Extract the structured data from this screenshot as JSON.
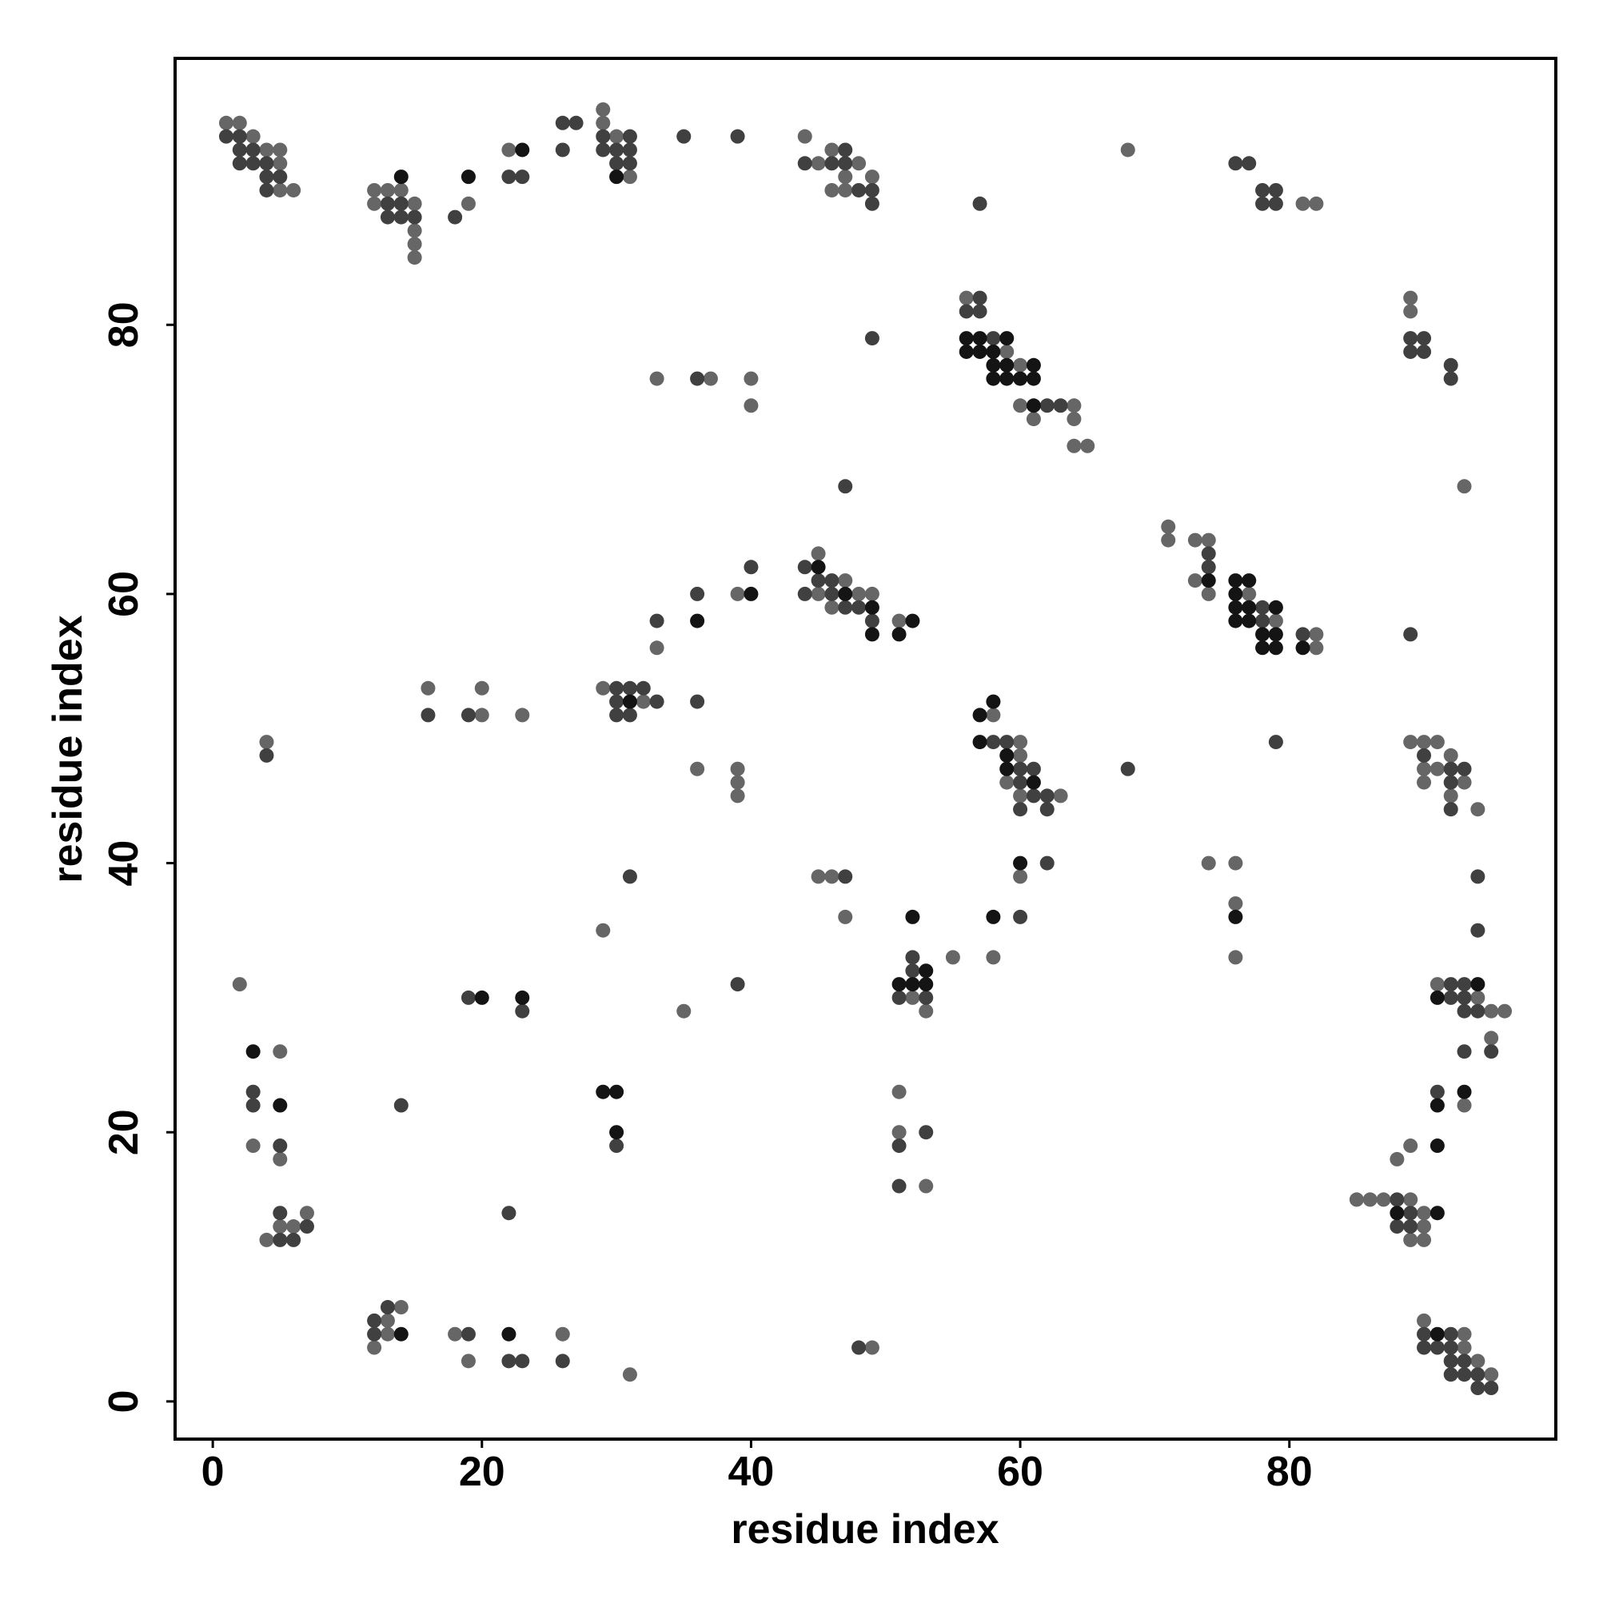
{
  "chart_data": {
    "type": "scatter",
    "xlabel": "residue index",
    "ylabel": "residue index",
    "xlim": [
      -2.8,
      99.8
    ],
    "ylim": [
      -2.8,
      99.8
    ],
    "xticks": [
      0,
      20,
      40,
      60,
      80
    ],
    "yticks": [
      0,
      20,
      40,
      60,
      80
    ],
    "series": [
      {
        "color": "#666666",
        "x": [
          1,
          2,
          3,
          4,
          5,
          5,
          5,
          6,
          12,
          13,
          14,
          12,
          15,
          15,
          15,
          15,
          19,
          22,
          29,
          29,
          30,
          31,
          44,
          45,
          46,
          48,
          47,
          49,
          46,
          47,
          68,
          81,
          82,
          56,
          59,
          60,
          60,
          64,
          61,
          64,
          64,
          65,
          33,
          37,
          40,
          40,
          89,
          89,
          93,
          71,
          71,
          73,
          74,
          73,
          74,
          77,
          79,
          82,
          82,
          45,
          45,
          47,
          48,
          49,
          46,
          51,
          39,
          33,
          16,
          20,
          20,
          23,
          29,
          32,
          4,
          36,
          39,
          39,
          39,
          58,
          60,
          60,
          59,
          60,
          63,
          89,
          90,
          91,
          92,
          90,
          91,
          90,
          93,
          92,
          94,
          60,
          45,
          46,
          47,
          74,
          76,
          76,
          29,
          55,
          58,
          76,
          52,
          53,
          2,
          35,
          91,
          94,
          95,
          96,
          95,
          5,
          3,
          5,
          51,
          51,
          53,
          93,
          89,
          88,
          7,
          5,
          6,
          4,
          85,
          86,
          87,
          89,
          90,
          90,
          89,
          90,
          14,
          13,
          13,
          12,
          18,
          19,
          26,
          31,
          49,
          90,
          93,
          93,
          94,
          95
        ],
        "values": [
          95,
          95,
          94,
          93,
          93,
          92,
          90,
          90,
          90,
          90,
          90,
          89,
          89,
          87,
          86,
          85,
          89,
          93,
          96,
          95,
          94,
          91,
          94,
          92,
          93,
          92,
          91,
          91,
          90,
          90,
          93,
          89,
          89,
          82,
          78,
          77,
          74,
          74,
          73,
          73,
          71,
          71,
          76,
          76,
          76,
          74,
          82,
          81,
          68,
          65,
          64,
          64,
          64,
          61,
          60,
          60,
          58,
          57,
          56,
          63,
          60,
          61,
          60,
          60,
          59,
          58,
          60,
          56,
          53,
          53,
          51,
          51,
          53,
          52,
          49,
          47,
          47,
          46,
          45,
          51,
          49,
          48,
          46,
          45,
          45,
          49,
          49,
          49,
          48,
          47,
          47,
          46,
          46,
          45,
          44,
          39,
          39,
          39,
          36,
          40,
          40,
          37,
          35,
          33,
          33,
          33,
          30,
          29,
          31,
          29,
          31,
          30,
          29,
          29,
          27,
          26,
          19,
          18,
          23,
          20,
          16,
          22,
          19,
          18,
          14,
          13,
          13,
          12,
          15,
          15,
          15,
          15,
          14,
          13,
          12,
          12,
          7,
          6,
          5,
          4,
          5,
          3,
          5,
          2,
          4,
          6,
          5,
          4,
          3,
          2
        ]
      },
      {
        "color": "#404040",
        "x": [
          1,
          2,
          2,
          3,
          2,
          3,
          4,
          4,
          5,
          4,
          13,
          14,
          13,
          14,
          15,
          18,
          22,
          23,
          26,
          27,
          26,
          29,
          31,
          29,
          30,
          31,
          30,
          31,
          35,
          39,
          44,
          47,
          46,
          47,
          48,
          49,
          49,
          57,
          76,
          77,
          78,
          79,
          78,
          79,
          57,
          56,
          57,
          58,
          62,
          63,
          49,
          36,
          89,
          90,
          89,
          90,
          92,
          92,
          47,
          74,
          74,
          78,
          78,
          81,
          44,
          44,
          45,
          46,
          46,
          47,
          48,
          49,
          36,
          40,
          33,
          89,
          16,
          19,
          30,
          31,
          32,
          30,
          33,
          30,
          31,
          36,
          4,
          58,
          59,
          90,
          60,
          61,
          60,
          61,
          62,
          60,
          62,
          68,
          92,
          93,
          92,
          92,
          79,
          62,
          47,
          31,
          94,
          60,
          94,
          52,
          52,
          51,
          53,
          19,
          23,
          39,
          92,
          93,
          92,
          93,
          93,
          94,
          95,
          93,
          3,
          3,
          5,
          14,
          30,
          51,
          53,
          51,
          91,
          5,
          7,
          5,
          6,
          22,
          88,
          89,
          88,
          89,
          12,
          13,
          12,
          19,
          22,
          23,
          26,
          48,
          90,
          92,
          90,
          91,
          92,
          92,
          93,
          92,
          93,
          94,
          94,
          95
        ],
        "values": [
          94,
          94,
          93,
          93,
          92,
          92,
          92,
          91,
          91,
          90,
          89,
          89,
          88,
          88,
          88,
          88,
          91,
          91,
          95,
          95,
          93,
          94,
          94,
          93,
          93,
          93,
          92,
          92,
          94,
          94,
          92,
          93,
          92,
          92,
          90,
          90,
          89,
          89,
          92,
          92,
          90,
          90,
          89,
          89,
          82,
          81,
          81,
          79,
          74,
          74,
          79,
          76,
          79,
          79,
          78,
          78,
          77,
          76,
          68,
          63,
          62,
          59,
          58,
          57,
          62,
          60,
          61,
          61,
          60,
          59,
          59,
          58,
          60,
          62,
          58,
          57,
          51,
          51,
          53,
          53,
          53,
          52,
          52,
          51,
          51,
          52,
          48,
          49,
          49,
          48,
          47,
          47,
          46,
          45,
          45,
          44,
          44,
          47,
          47,
          47,
          46,
          44,
          49,
          40,
          39,
          39,
          39,
          36,
          35,
          33,
          32,
          30,
          30,
          30,
          29,
          31,
          31,
          31,
          30,
          30,
          29,
          29,
          26,
          26,
          23,
          22,
          19,
          22,
          19,
          19,
          20,
          16,
          23,
          14,
          13,
          12,
          12,
          14,
          15,
          14,
          13,
          13,
          6,
          7,
          5,
          5,
          3,
          3,
          3,
          4,
          5,
          5,
          4,
          4,
          4,
          3,
          3,
          2,
          2,
          2,
          1,
          1
        ]
      },
      {
        "color": "#141414",
        "x": [
          14,
          19,
          23,
          30,
          56,
          57,
          59,
          56,
          57,
          58,
          58,
          59,
          61,
          58,
          59,
          60,
          61,
          61,
          74,
          76,
          77,
          76,
          76,
          77,
          79,
          76,
          77,
          78,
          79,
          78,
          79,
          81,
          45,
          47,
          49,
          49,
          52,
          51,
          36,
          40,
          31,
          57,
          58,
          57,
          59,
          59,
          61,
          60,
          76,
          58,
          52,
          51,
          52,
          53,
          53,
          20,
          23,
          94,
          91,
          3,
          5,
          29,
          30,
          30,
          91,
          93,
          91,
          88,
          91,
          14,
          22,
          91
        ],
        "values": [
          91,
          91,
          93,
          91,
          79,
          79,
          79,
          78,
          78,
          78,
          77,
          77,
          77,
          76,
          76,
          76,
          76,
          74,
          61,
          61,
          61,
          60,
          59,
          59,
          59,
          58,
          58,
          57,
          57,
          56,
          56,
          56,
          62,
          60,
          59,
          57,
          58,
          57,
          58,
          60,
          52,
          51,
          52,
          49,
          48,
          47,
          46,
          40,
          36,
          36,
          36,
          31,
          31,
          31,
          32,
          30,
          30,
          31,
          30,
          26,
          22,
          23,
          23,
          20,
          22,
          23,
          19,
          14,
          14,
          5,
          5,
          5
        ]
      }
    ]
  }
}
